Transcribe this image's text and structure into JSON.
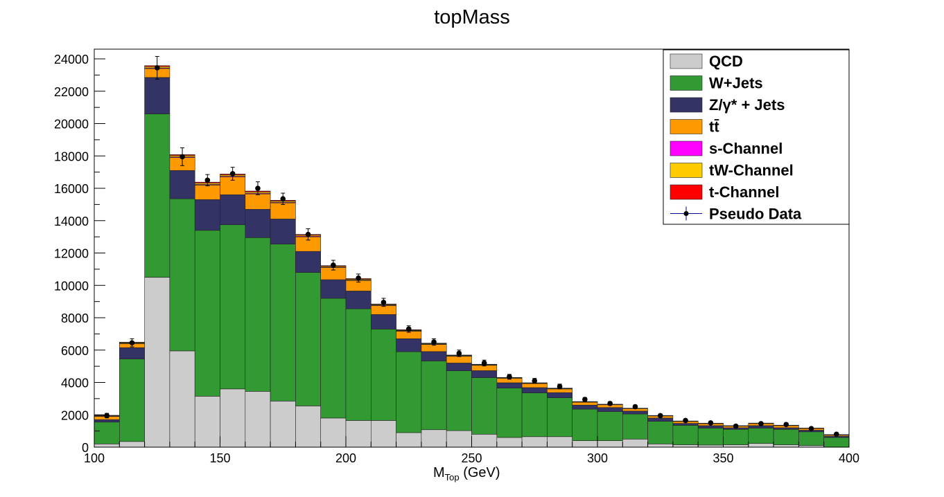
{
  "chart_data": {
    "type": "bar",
    "stacked": true,
    "title": "topMass",
    "xlabel": "M",
    "xlabel_sub": "Top",
    "xlabel_unit": " (GeV)",
    "ylabel": "",
    "xlim": [
      100,
      400
    ],
    "ylim": [
      0,
      24600
    ],
    "x_ticks": [
      100,
      150,
      200,
      250,
      300,
      350,
      400
    ],
    "y_ticks": [
      0,
      2000,
      4000,
      6000,
      8000,
      10000,
      12000,
      14000,
      16000,
      18000,
      20000,
      22000,
      24000
    ],
    "bin_edges": [
      100,
      110,
      120,
      130,
      140,
      150,
      160,
      170,
      180,
      190,
      200,
      210,
      220,
      230,
      240,
      250,
      260,
      270,
      280,
      290,
      300,
      310,
      320,
      330,
      340,
      350,
      360,
      370,
      380,
      390,
      400
    ],
    "grid": false,
    "legend_position": "top-right",
    "series": [
      {
        "name": "QCD",
        "color": "#cccccc",
        "values": [
          200,
          350,
          10500,
          5950,
          3150,
          3600,
          3450,
          2850,
          2550,
          1800,
          1650,
          1650,
          900,
          1080,
          1020,
          800,
          600,
          650,
          650,
          400,
          400,
          500,
          200,
          150,
          130,
          150,
          230,
          150,
          100,
          0
        ]
      },
      {
        "name": "W+Jets",
        "color": "#339933",
        "values": [
          1350,
          5100,
          10100,
          9400,
          10250,
          10150,
          9500,
          9700,
          8250,
          7400,
          6900,
          5650,
          5000,
          4250,
          3700,
          3500,
          3050,
          2700,
          2400,
          1950,
          1800,
          1550,
          1400,
          1200,
          1050,
          950,
          950,
          950,
          850,
          600
        ]
      },
      {
        "name": "Z/γ* + Jets",
        "color": "#333366",
        "values": [
          150,
          700,
          2250,
          1750,
          1900,
          1850,
          1750,
          1550,
          1300,
          1150,
          1100,
          900,
          800,
          580,
          480,
          430,
          330,
          330,
          320,
          250,
          250,
          180,
          200,
          120,
          150,
          100,
          150,
          100,
          100,
          80
        ]
      },
      {
        "name": "tt̄",
        "color": "#ff9900",
        "values": [
          200,
          250,
          550,
          800,
          900,
          1100,
          950,
          1000,
          900,
          750,
          650,
          550,
          470,
          440,
          420,
          330,
          280,
          250,
          230,
          180,
          170,
          150,
          130,
          120,
          120,
          100,
          130,
          130,
          100,
          70
        ]
      },
      {
        "name": "s-Channel",
        "color": "#ff00ff",
        "values": [
          10,
          20,
          40,
          40,
          40,
          40,
          40,
          40,
          40,
          30,
          30,
          30,
          25,
          25,
          20,
          20,
          15,
          15,
          15,
          10,
          10,
          10,
          10,
          10,
          10,
          10,
          10,
          10,
          10,
          10
        ]
      },
      {
        "name": "tW-Channel",
        "color": "#ffcc00",
        "values": [
          30,
          40,
          80,
          80,
          80,
          80,
          80,
          70,
          60,
          50,
          50,
          40,
          35,
          30,
          30,
          25,
          20,
          20,
          20,
          15,
          15,
          10,
          10,
          10,
          10,
          10,
          10,
          10,
          10,
          10
        ]
      },
      {
        "name": "t-Channel",
        "color": "#ff0000",
        "values": [
          30,
          30,
          60,
          60,
          60,
          60,
          60,
          50,
          50,
          40,
          40,
          30,
          30,
          25,
          25,
          20,
          15,
          15,
          15,
          15,
          10,
          10,
          10,
          10,
          10,
          10,
          10,
          10,
          10,
          10
        ]
      }
    ],
    "pseudo_data": {
      "name": "Pseudo Data",
      "color": "#000099",
      "x": [
        105,
        115,
        125,
        135,
        145,
        155,
        165,
        175,
        185,
        195,
        205,
        215,
        225,
        235,
        245,
        255,
        265,
        275,
        285,
        295,
        305,
        315,
        325,
        335,
        345,
        355,
        365,
        375,
        385,
        395
      ],
      "y": [
        1950,
        6450,
        23450,
        17950,
        16500,
        16900,
        16000,
        15350,
        13150,
        11250,
        10450,
        8950,
        7300,
        6500,
        5800,
        5200,
        4350,
        4100,
        3750,
        2950,
        2700,
        2500,
        1950,
        1650,
        1500,
        1300,
        1450,
        1400,
        1150,
        800
      ],
      "err": [
        140,
        250,
        700,
        550,
        350,
        400,
        400,
        350,
        350,
        300,
        250,
        250,
        200,
        200,
        200,
        180,
        150,
        150,
        150,
        120,
        110,
        100,
        90,
        80,
        80,
        80,
        80,
        80,
        70,
        60
      ]
    }
  }
}
